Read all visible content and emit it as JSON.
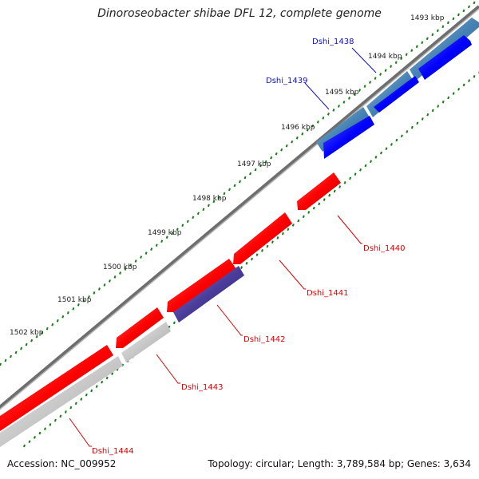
{
  "title": "Dinoroseobacter shibae DFL 12, complete genome",
  "accession": "Accession: NC_009952",
  "summary": "Topology: circular; Length: 3,789,584 bp; Genes: 3,634",
  "ticks": [
    "1493 kbp",
    "1494 kbp",
    "1495 kbp",
    "1496 kbp",
    "1497 kbp",
    "1498 kbp",
    "1499 kbp",
    "1500 kbp",
    "1501 kbp",
    "1502 kbp"
  ],
  "genes": [
    {
      "name": "Dshi_1438",
      "color": "#1010cc"
    },
    {
      "name": "Dshi_1439",
      "color": "#1010cc"
    },
    {
      "name": "Dshi_1440",
      "color": "#dd0000"
    },
    {
      "name": "Dshi_1441",
      "color": "#dd0000"
    },
    {
      "name": "Dshi_1442",
      "color": "#dd0000"
    },
    {
      "name": "Dshi_1443",
      "color": "#dd0000"
    },
    {
      "name": "Dshi_1444",
      "color": "#dd0000"
    }
  ],
  "colors": {
    "forward_cds": "#ff0000",
    "reverse_cds": "#0000ff",
    "rna_bar": "#4682b4",
    "grey_bar": "#c8c8c8",
    "purple_bar": "#4a3c9a",
    "backbone": "#777777",
    "tick_dots": "#1a7a1a"
  }
}
